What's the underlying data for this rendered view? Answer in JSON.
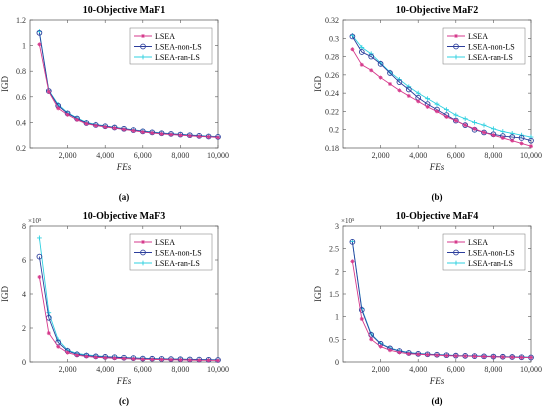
{
  "chart_data": [
    {
      "type": "line",
      "title": "10-Objective MaF1",
      "caption": "(a)",
      "xlabel": "FEs",
      "ylabel": "IGD",
      "multiplier": "",
      "xlim": [
        0,
        10000
      ],
      "ylim": [
        0.2,
        1.2
      ],
      "xticks": [
        2000,
        4000,
        6000,
        8000,
        10000
      ],
      "xticklabels": [
        "2,000",
        "4,000",
        "6,000",
        "8,000",
        "10,000"
      ],
      "yticks": [
        0.2,
        0.4,
        0.6,
        0.8,
        1.0,
        1.2
      ],
      "yticklabels": [
        "0.2",
        "0.4",
        "0.6",
        "0.8",
        "1",
        "1.2"
      ],
      "legend_position": "top-right",
      "x": [
        500,
        1000,
        1500,
        2000,
        2500,
        3000,
        3500,
        4000,
        4500,
        5000,
        5500,
        6000,
        6500,
        7000,
        7500,
        8000,
        8500,
        9000,
        9500,
        10000
      ],
      "series": [
        {
          "name": "LSEA",
          "color": "#d63a8c",
          "marker": "star",
          "values": [
            1.01,
            0.64,
            0.51,
            0.46,
            0.42,
            0.39,
            0.375,
            0.365,
            0.355,
            0.345,
            0.335,
            0.325,
            0.318,
            0.31,
            0.305,
            0.3,
            0.295,
            0.29,
            0.287,
            0.283
          ]
        },
        {
          "name": "LSEA-non-LS",
          "color": "#2c3e9c",
          "marker": "circle",
          "values": [
            1.1,
            0.645,
            0.53,
            0.47,
            0.43,
            0.395,
            0.38,
            0.37,
            0.36,
            0.35,
            0.34,
            0.33,
            0.322,
            0.315,
            0.31,
            0.305,
            0.3,
            0.295,
            0.29,
            0.287
          ]
        },
        {
          "name": "LSEA-ran-LS",
          "color": "#2fd0e0",
          "marker": "plus",
          "values": [
            1.11,
            0.65,
            0.54,
            0.475,
            0.435,
            0.4,
            0.385,
            0.372,
            0.362,
            0.352,
            0.342,
            0.333,
            0.325,
            0.318,
            0.312,
            0.307,
            0.302,
            0.297,
            0.292,
            0.289
          ]
        }
      ]
    },
    {
      "type": "line",
      "title": "10-Objective MaF2",
      "caption": "(b)",
      "xlabel": "FEs",
      "ylabel": "IGD",
      "multiplier": "",
      "xlim": [
        0,
        10000
      ],
      "ylim": [
        0.18,
        0.32
      ],
      "xticks": [
        2000,
        4000,
        6000,
        8000,
        10000
      ],
      "xticklabels": [
        "2,000",
        "4,000",
        "6,000",
        "8,000",
        "10,000"
      ],
      "yticks": [
        0.18,
        0.2,
        0.22,
        0.24,
        0.26,
        0.28,
        0.3,
        0.32
      ],
      "yticklabels": [
        "0.18",
        "0.2",
        "0.22",
        "0.24",
        "0.26",
        "0.28",
        "0.3",
        "0.32"
      ],
      "legend_position": "top-right",
      "x": [
        500,
        1000,
        1500,
        2000,
        2500,
        3000,
        3500,
        4000,
        4500,
        5000,
        5500,
        6000,
        6500,
        7000,
        7500,
        8000,
        8500,
        9000,
        9500,
        10000
      ],
      "series": [
        {
          "name": "LSEA",
          "color": "#d63a8c",
          "marker": "star",
          "values": [
            0.288,
            0.271,
            0.265,
            0.257,
            0.25,
            0.243,
            0.237,
            0.231,
            0.225,
            0.22,
            0.214,
            0.21,
            0.205,
            0.201,
            0.197,
            0.194,
            0.191,
            0.188,
            0.185,
            0.182
          ]
        },
        {
          "name": "LSEA-non-LS",
          "color": "#2c3e9c",
          "marker": "circle",
          "values": [
            0.302,
            0.285,
            0.28,
            0.272,
            0.262,
            0.252,
            0.244,
            0.235,
            0.228,
            0.222,
            0.216,
            0.21,
            0.205,
            0.2,
            0.197,
            0.195,
            0.193,
            0.192,
            0.191,
            0.188
          ]
        },
        {
          "name": "LSEA-ran-LS",
          "color": "#2fd0e0",
          "marker": "plus",
          "values": [
            0.303,
            0.29,
            0.283,
            0.273,
            0.263,
            0.255,
            0.247,
            0.24,
            0.234,
            0.228,
            0.222,
            0.216,
            0.212,
            0.208,
            0.205,
            0.201,
            0.198,
            0.196,
            0.194,
            0.192
          ]
        }
      ]
    },
    {
      "type": "line",
      "title": "10-Objective MaF3",
      "caption": "(c)",
      "xlabel": "FEs",
      "ylabel": "IGD",
      "multiplier": "×10⁵",
      "xlim": [
        0,
        10000
      ],
      "ylim": [
        0,
        8
      ],
      "xticks": [
        2000,
        4000,
        6000,
        8000,
        10000
      ],
      "xticklabels": [
        "2,000",
        "4,000",
        "6,000",
        "8,000",
        "10,000"
      ],
      "yticks": [
        0,
        2,
        4,
        6,
        8
      ],
      "yticklabels": [
        "0",
        "2",
        "4",
        "6",
        "8"
      ],
      "legend_position": "top-right",
      "x": [
        500,
        1000,
        1500,
        2000,
        2500,
        3000,
        3500,
        4000,
        4500,
        5000,
        5500,
        6000,
        6500,
        7000,
        7500,
        8000,
        8500,
        9000,
        9500,
        10000
      ],
      "series": [
        {
          "name": "LSEA",
          "color": "#d63a8c",
          "marker": "star",
          "values": [
            5.0,
            1.7,
            0.9,
            0.55,
            0.4,
            0.33,
            0.28,
            0.25,
            0.22,
            0.2,
            0.18,
            0.16,
            0.15,
            0.14,
            0.13,
            0.12,
            0.11,
            0.1,
            0.1,
            0.09
          ]
        },
        {
          "name": "LSEA-non-LS",
          "color": "#2c3e9c",
          "marker": "circle",
          "values": [
            6.2,
            2.6,
            1.15,
            0.65,
            0.45,
            0.38,
            0.33,
            0.3,
            0.28,
            0.25,
            0.23,
            0.2,
            0.19,
            0.18,
            0.17,
            0.16,
            0.15,
            0.14,
            0.13,
            0.12
          ]
        },
        {
          "name": "LSEA-ran-LS",
          "color": "#2fd0e0",
          "marker": "plus",
          "values": [
            7.3,
            2.9,
            1.3,
            0.7,
            0.5,
            0.42,
            0.36,
            0.32,
            0.29,
            0.26,
            0.24,
            0.22,
            0.2,
            0.19,
            0.18,
            0.17,
            0.16,
            0.15,
            0.14,
            0.13
          ]
        }
      ]
    },
    {
      "type": "line",
      "title": "10-Objective MaF4",
      "caption": "(d)",
      "xlabel": "FEs",
      "ylabel": "IGD",
      "multiplier": "×10⁵",
      "xlim": [
        0,
        10000
      ],
      "ylim": [
        0,
        3
      ],
      "xticks": [
        2000,
        4000,
        6000,
        8000,
        10000
      ],
      "xticklabels": [
        "2,000",
        "4,000",
        "6,000",
        "8,000",
        "10,000"
      ],
      "yticks": [
        0,
        0.5,
        1,
        1.5,
        2,
        2.5,
        3
      ],
      "yticklabels": [
        "0",
        "0.5",
        "1",
        "1.5",
        "2",
        "2.5",
        "3"
      ],
      "legend_position": "top-right",
      "x": [
        500,
        1000,
        1500,
        2000,
        2500,
        3000,
        3500,
        4000,
        4500,
        5000,
        5500,
        6000,
        6500,
        7000,
        7500,
        8000,
        8500,
        9000,
        9500,
        10000
      ],
      "series": [
        {
          "name": "LSEA",
          "color": "#d63a8c",
          "marker": "star",
          "values": [
            2.22,
            0.95,
            0.5,
            0.34,
            0.26,
            0.21,
            0.18,
            0.17,
            0.16,
            0.15,
            0.14,
            0.135,
            0.13,
            0.125,
            0.12,
            0.115,
            0.11,
            0.105,
            0.1,
            0.1
          ]
        },
        {
          "name": "LSEA-non-LS",
          "color": "#2c3e9c",
          "marker": "circle",
          "values": [
            2.65,
            1.15,
            0.6,
            0.4,
            0.3,
            0.24,
            0.2,
            0.18,
            0.17,
            0.16,
            0.15,
            0.14,
            0.135,
            0.13,
            0.125,
            0.12,
            0.115,
            0.11,
            0.105,
            0.1
          ]
        },
        {
          "name": "LSEA-ran-LS",
          "color": "#2fd0e0",
          "marker": "plus",
          "values": [
            2.66,
            1.18,
            0.62,
            0.41,
            0.31,
            0.25,
            0.21,
            0.19,
            0.175,
            0.165,
            0.155,
            0.145,
            0.14,
            0.135,
            0.13,
            0.125,
            0.12,
            0.115,
            0.11,
            0.105
          ]
        }
      ]
    }
  ]
}
